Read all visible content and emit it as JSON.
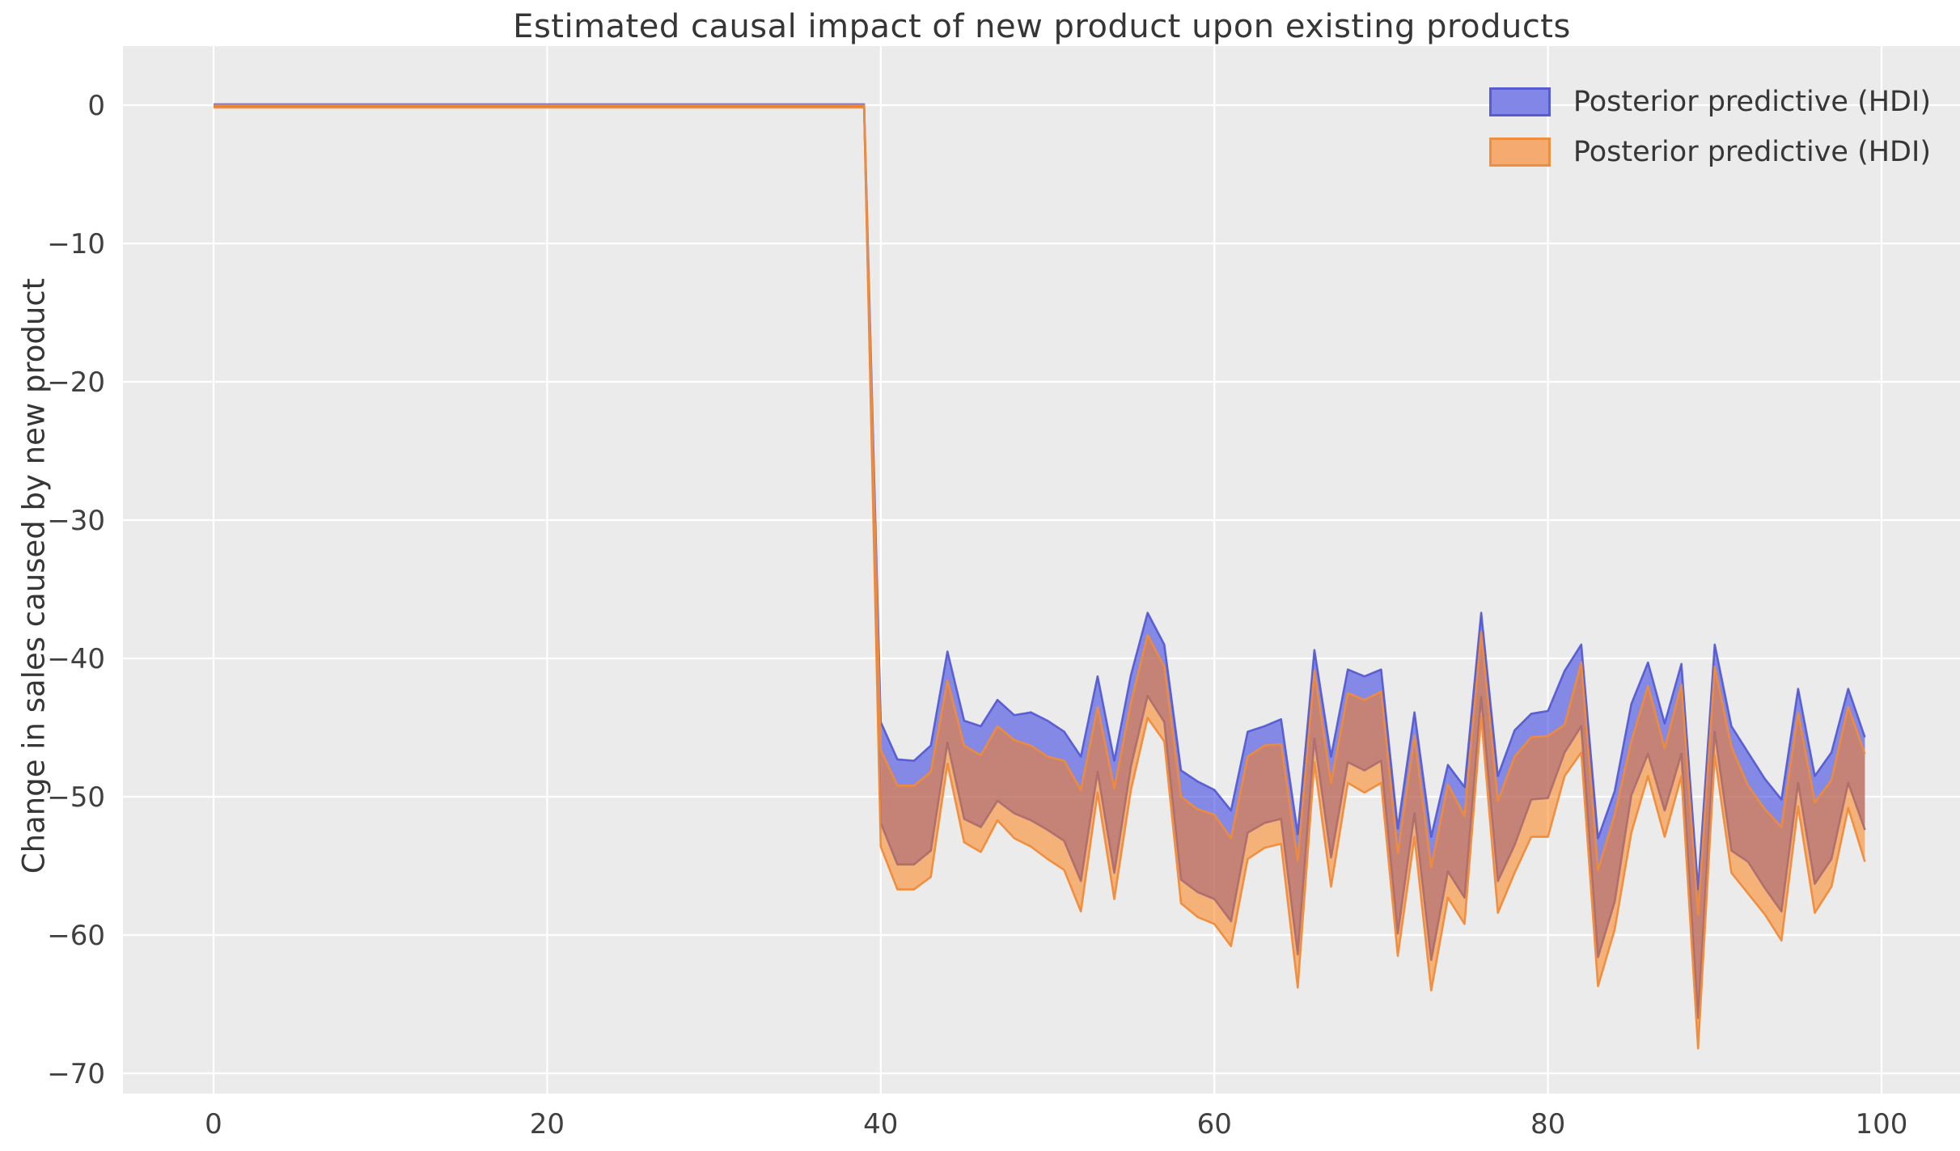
{
  "title": "Estimated causal impact of new product upon existing products",
  "y_axis_label": "Change in sales caused by new product",
  "legend": {
    "entries": [
      {
        "label": "Posterior predictive (HDI)",
        "swatch_fill": "#8286e7",
        "swatch_edge": "#575ccf"
      },
      {
        "label": "Posterior predictive (HDI)",
        "swatch_fill": "#f5ab70",
        "swatch_edge": "#ee8f3d"
      }
    ]
  },
  "chart_data": {
    "type": "area",
    "title": "Estimated causal impact of new product upon existing products",
    "xlabel": "",
    "ylabel": "Change in sales caused by new product",
    "xlim": [
      -5.4,
      104.7
    ],
    "ylim": [
      -71.5,
      4.3
    ],
    "grid": true,
    "background": "#ebebeb",
    "gridline_color": "#ffffff",
    "tick_color": "#404040",
    "legend_position": "upper right",
    "x_ticks": [
      0,
      20,
      40,
      60,
      80,
      100
    ],
    "x_tick_labels": [
      "0",
      "20",
      "40",
      "60",
      "80",
      "100"
    ],
    "y_ticks": [
      0,
      -10,
      -20,
      -30,
      -40,
      -50,
      -60,
      -70
    ],
    "y_tick_labels": [
      "0",
      "−10",
      "−20",
      "−30",
      "−40",
      "−50",
      "−60",
      "−70"
    ],
    "treatment_time": 40,
    "pre_period": {
      "x_start": 0,
      "x_end": 39,
      "value": 0,
      "blue_upper": 0.05,
      "blue_lower": -0.12,
      "orange_upper": 0.0,
      "orange_lower": -0.17,
      "appearance": "thin reddish-brown flat line at 0 (collapsed overlapping bands)"
    },
    "band_x_start": 39,
    "series": [
      {
        "name": "Posterior predictive (HDI)",
        "color_role": "blue-band",
        "fill": "#3038e0",
        "fill_opacity": 0.55,
        "edge": "#5056d0",
        "edge_opacity": 0.9,
        "upper": [
          0.05,
          -44.6,
          -47.3,
          -47.4,
          -46.3,
          -39.5,
          -44.5,
          -44.9,
          -43.0,
          -44.1,
          -43.9,
          -44.5,
          -45.3,
          -47.1,
          -41.3,
          -47.4,
          -41.2,
          -36.7,
          -39.0,
          -48.1,
          -48.9,
          -49.5,
          -51.0,
          -45.3,
          -44.9,
          -44.4,
          -52.7,
          -39.4,
          -47.1,
          -40.8,
          -41.3,
          -40.8,
          -52.3,
          -43.9,
          -52.9,
          -47.7,
          -49.3,
          -36.7,
          -48.5,
          -45.2,
          -44.0,
          -43.8,
          -40.9,
          -39.0,
          -53.0,
          -49.6,
          -43.3,
          -40.3,
          -44.7,
          -40.4,
          -56.7,
          -39.0,
          -44.9,
          -46.8,
          -48.7,
          -50.2,
          -42.2,
          -48.5,
          -46.8,
          -42.2,
          -45.7
        ],
        "lower": [
          -0.12,
          -51.9,
          -54.9,
          -54.9,
          -53.9,
          -46.1,
          -51.6,
          -52.2,
          -50.3,
          -51.2,
          -51.7,
          -52.4,
          -53.2,
          -56.1,
          -48.2,
          -55.5,
          -47.8,
          -42.7,
          -44.6,
          -56.0,
          -56.9,
          -57.4,
          -59.0,
          -52.6,
          -51.9,
          -51.6,
          -61.4,
          -45.8,
          -54.4,
          -47.5,
          -48.1,
          -47.4,
          -59.9,
          -51.2,
          -61.8,
          -55.4,
          -57.3,
          -42.8,
          -56.1,
          -53.5,
          -50.2,
          -50.1,
          -46.8,
          -44.9,
          -61.6,
          -57.6,
          -49.9,
          -46.9,
          -51.0,
          -46.9,
          -66.0,
          -45.3,
          -53.9,
          -54.7,
          -56.6,
          -58.3,
          -49.0,
          -56.3,
          -54.5,
          -49.0,
          -52.4
        ]
      },
      {
        "name": "Posterior predictive (HDI)",
        "color_role": "orange-band",
        "fill": "#ff7e10",
        "fill_opacity": 0.52,
        "edge": "#ef8b3b",
        "edge_opacity": 0.95,
        "upper": [
          0.0,
          -46.6,
          -49.2,
          -49.2,
          -48.2,
          -41.6,
          -46.3,
          -47.0,
          -44.9,
          -45.9,
          -46.3,
          -47.1,
          -47.4,
          -49.5,
          -43.5,
          -49.4,
          -43.2,
          -38.3,
          -40.6,
          -50.0,
          -50.9,
          -51.3,
          -53.0,
          -47.1,
          -46.3,
          -46.2,
          -54.6,
          -40.9,
          -49.0,
          -42.5,
          -43.0,
          -42.4,
          -54.1,
          -45.6,
          -55.1,
          -49.1,
          -51.4,
          -38.1,
          -50.3,
          -47.1,
          -45.7,
          -45.6,
          -44.8,
          -40.3,
          -55.3,
          -51.3,
          -46.0,
          -42.0,
          -46.5,
          -41.9,
          -58.5,
          -40.6,
          -46.4,
          -49.2,
          -50.9,
          -52.2,
          -43.9,
          -50.4,
          -48.8,
          -43.5,
          -46.9
        ],
        "lower": [
          -0.17,
          -53.6,
          -56.7,
          -56.7,
          -55.8,
          -47.6,
          -53.3,
          -54.0,
          -51.7,
          -53.0,
          -53.6,
          -54.5,
          -55.3,
          -58.3,
          -49.7,
          -57.4,
          -49.5,
          -44.3,
          -46.0,
          -57.7,
          -58.7,
          -59.2,
          -60.8,
          -54.5,
          -53.7,
          -53.4,
          -63.8,
          -47.5,
          -56.5,
          -49.0,
          -49.7,
          -49.0,
          -61.5,
          -52.9,
          -64.0,
          -57.3,
          -59.2,
          -44.2,
          -58.4,
          -55.5,
          -52.9,
          -52.9,
          -48.5,
          -46.8,
          -63.7,
          -59.6,
          -52.6,
          -48.5,
          -52.9,
          -48.5,
          -68.2,
          -47.0,
          -55.5,
          -57.0,
          -58.5,
          -60.4,
          -50.7,
          -58.4,
          -56.5,
          -50.8,
          -54.7
        ]
      }
    ]
  }
}
